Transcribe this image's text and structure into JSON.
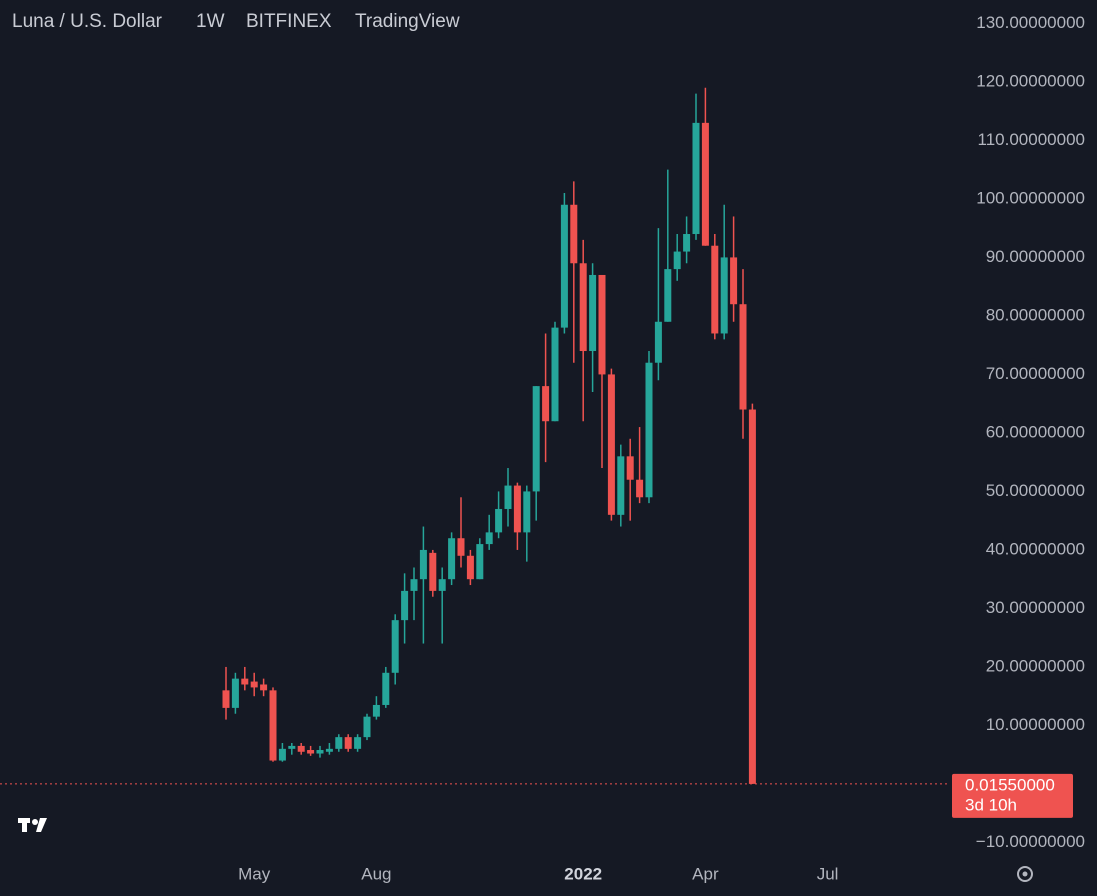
{
  "chart_data": {
    "type": "candlestick",
    "title": "Luna / U.S. Dollar",
    "interval": "1W",
    "exchange": "BITFINEX",
    "source": "TradingView",
    "categories": [
      null,
      null,
      null,
      "May",
      null,
      null,
      null,
      null,
      null,
      null,
      null,
      null,
      null,
      null,
      null,
      null,
      "Aug",
      null,
      null,
      null,
      null,
      null,
      null,
      null,
      null,
      null,
      null,
      null,
      null,
      null,
      null,
      null,
      null,
      null,
      null,
      null,
      null,
      null,
      "2022",
      null,
      null,
      null,
      null,
      null,
      null,
      null,
      null,
      null,
      null,
      null,
      null,
      "Apr",
      null,
      null,
      null,
      null,
      null,
      null,
      null,
      null,
      null,
      null,
      null,
      null,
      "Jul"
    ],
    "open": [
      16,
      13,
      18,
      17.5,
      17,
      16,
      4,
      6,
      6.5,
      5.8,
      5.2,
      5.5,
      6,
      8,
      6,
      8,
      11.5,
      13.5,
      19,
      28,
      33,
      35,
      39.5,
      33,
      35,
      42,
      39,
      35,
      41,
      43,
      47,
      51,
      43,
      50,
      68,
      62,
      78,
      99,
      89,
      74,
      87,
      70,
      46,
      56,
      52,
      49,
      72,
      79,
      88,
      91,
      94,
      113,
      92,
      77,
      90,
      82,
      64,
      null,
      null,
      null,
      null,
      null,
      null,
      null,
      null
    ],
    "high": [
      20,
      19,
      20,
      19,
      18,
      16.5,
      7,
      7,
      7,
      6.5,
      6.5,
      7,
      8.5,
      8.5,
      8.5,
      12,
      15,
      20,
      29,
      36,
      37,
      44,
      40,
      37,
      43,
      49,
      40,
      42,
      46,
      50,
      54,
      51.5,
      51,
      68,
      77,
      79,
      101,
      103,
      93,
      89,
      87,
      71,
      58,
      59,
      61,
      74,
      95,
      105,
      94,
      97,
      118,
      119,
      94,
      99,
      97,
      88,
      65,
      null,
      null,
      null,
      null,
      null,
      null,
      null,
      null
    ],
    "low": [
      11,
      12,
      16,
      15,
      15,
      3.8,
      3.8,
      5,
      5,
      4.8,
      4.5,
      5,
      5.5,
      5.5,
      5.5,
      7.5,
      11,
      13,
      17,
      24,
      28,
      24,
      32,
      24,
      34,
      37,
      34,
      35,
      40,
      42,
      44,
      40,
      38,
      45,
      55,
      62,
      77,
      72,
      62,
      67,
      54,
      45,
      44,
      45,
      48,
      48,
      69,
      79,
      86,
      89,
      93,
      92,
      76,
      76,
      79,
      59,
      0.01,
      null,
      null,
      null,
      null,
      null,
      null,
      null,
      null
    ],
    "close": [
      13,
      18,
      17,
      16.5,
      16,
      4,
      6,
      6.5,
      5.5,
      5.2,
      5.8,
      6,
      8,
      6,
      8,
      11.5,
      13.5,
      19,
      28,
      33,
      35,
      40,
      33,
      35,
      42,
      39,
      35,
      41,
      43,
      47,
      51,
      43,
      50,
      68,
      62,
      78,
      99,
      89,
      74,
      87,
      70,
      46,
      56,
      52,
      49,
      72,
      79,
      88,
      91,
      94,
      113,
      92,
      77,
      90,
      82,
      64,
      0.0155,
      null,
      null,
      null,
      null,
      null,
      null,
      null,
      null
    ],
    "up_color": "#26a69a",
    "down_color": "#ef5350",
    "last_price": {
      "value": 0.0155,
      "label": "0.01550000"
    },
    "countdown": "3d 10h",
    "ylim": [
      -13,
      134
    ],
    "yticks": [
      {
        "value": 130,
        "label": "130.00000000"
      },
      {
        "value": 120,
        "label": "120.00000000"
      },
      {
        "value": 110,
        "label": "110.00000000"
      },
      {
        "value": 100,
        "label": "100.00000000"
      },
      {
        "value": 90,
        "label": "90.00000000"
      },
      {
        "value": 80,
        "label": "80.00000000"
      },
      {
        "value": 70,
        "label": "70.00000000"
      },
      {
        "value": 60,
        "label": "60.00000000"
      },
      {
        "value": 50,
        "label": "50.00000000"
      },
      {
        "value": 40,
        "label": "40.00000000"
      },
      {
        "value": 30,
        "label": "30.00000000"
      },
      {
        "value": 20,
        "label": "20.00000000"
      },
      {
        "value": 10,
        "label": "10.00000000"
      },
      {
        "value": -10,
        "label": "−10.00000000"
      }
    ],
    "grid": false
  }
}
